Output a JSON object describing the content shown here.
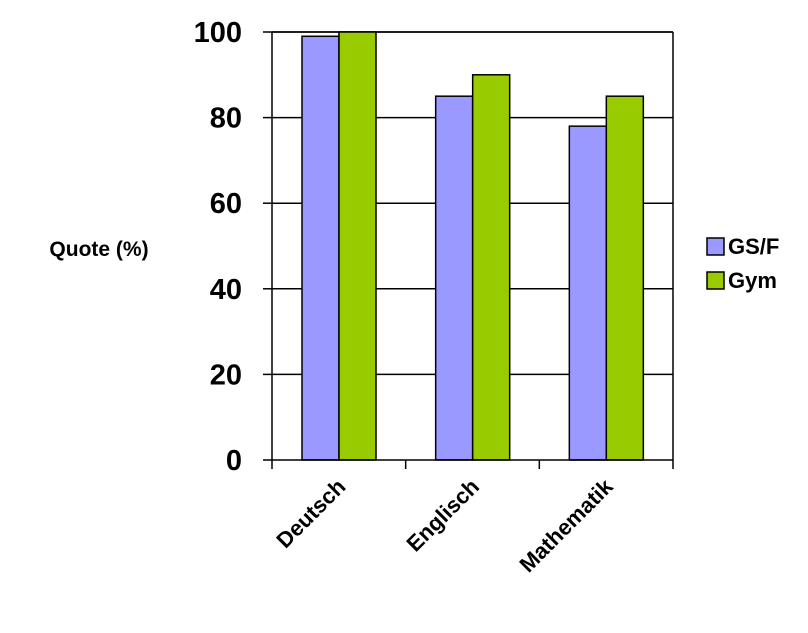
{
  "chart_data": {
    "type": "bar",
    "categories": [
      "Deutsch",
      "Englisch",
      "Mathematik"
    ],
    "series": [
      {
        "name": "GS/F",
        "values": [
          99,
          85,
          78
        ],
        "color": "#9999ff"
      },
      {
        "name": "Gym",
        "values": [
          100,
          90,
          85
        ],
        "color": "#99cc00"
      }
    ],
    "ylabel": "Quote (%)",
    "ylim": [
      0,
      100
    ],
    "yticks": [
      0,
      20,
      40,
      60,
      80,
      100
    ],
    "grid": true,
    "legend": "right"
  }
}
